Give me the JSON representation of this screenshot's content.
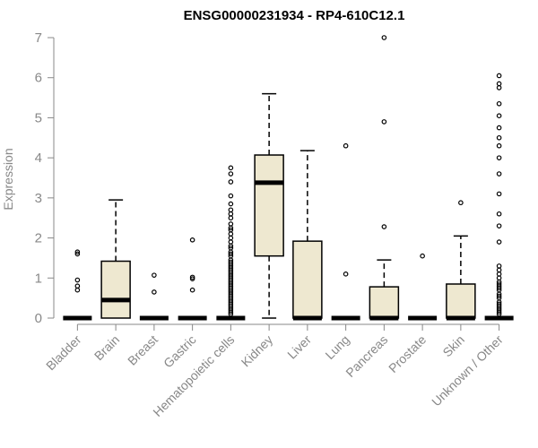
{
  "chart_data": {
    "type": "boxplot",
    "title": "ENSG00000231934 - RP4-610C12.1",
    "xlabel": "",
    "ylabel": "Expression",
    "ylim": [
      0,
      7
    ],
    "yticks": [
      "0",
      "1",
      "2",
      "3",
      "4",
      "5",
      "6",
      "7"
    ],
    "grid": false,
    "legend": "none",
    "colors": {
      "box_fill": "#EEE8D0",
      "box_stroke": "#000000",
      "axis": "#888888"
    },
    "categories": [
      "Bladder",
      "Brain",
      "Breast",
      "Gastric",
      "Hematopoietic cells",
      "Kidney",
      "Liver",
      "Lung",
      "Pancreas",
      "Prostate",
      "Skin",
      "Unknown / Other"
    ],
    "series": [
      {
        "category": "Bladder",
        "q1": 0,
        "median": 0,
        "q3": 0,
        "whisker_low": 0,
        "whisker_high": 0,
        "outliers": [
          0.7,
          0.8,
          0.95,
          1.6,
          1.65
        ]
      },
      {
        "category": "Brain",
        "q1": 0,
        "median": 0.45,
        "q3": 1.42,
        "whisker_low": 0,
        "whisker_high": 2.95,
        "outliers": []
      },
      {
        "category": "Breast",
        "q1": 0,
        "median": 0,
        "q3": 0,
        "whisker_low": 0,
        "whisker_high": 0,
        "outliers": [
          0.65,
          1.07
        ]
      },
      {
        "category": "Gastric",
        "q1": 0,
        "median": 0,
        "q3": 0,
        "whisker_low": 0,
        "whisker_high": 0,
        "outliers": [
          0.7,
          0.98,
          1.02,
          1.95
        ]
      },
      {
        "category": "Hematopoietic cells",
        "q1": 0,
        "median": 0,
        "q3": 0,
        "whisker_low": 0,
        "whisker_high": 0,
        "outliers": [
          0.1,
          0.15,
          0.2,
          0.25,
          0.3,
          0.35,
          0.4,
          0.45,
          0.5,
          0.55,
          0.6,
          0.65,
          0.7,
          0.75,
          0.8,
          0.85,
          0.9,
          0.95,
          1.0,
          1.05,
          1.1,
          1.15,
          1.2,
          1.25,
          1.3,
          1.35,
          1.4,
          1.45,
          1.55,
          1.6,
          1.65,
          1.75,
          1.8,
          1.9,
          2.0,
          2.1,
          2.2,
          2.25,
          2.35,
          2.5,
          2.6,
          2.7,
          2.85,
          3.05,
          3.4,
          3.6,
          3.75
        ]
      },
      {
        "category": "Kidney",
        "q1": 1.55,
        "median": 3.38,
        "q3": 4.07,
        "whisker_low": 0,
        "whisker_high": 5.6,
        "outliers": []
      },
      {
        "category": "Liver",
        "q1": 0,
        "median": 0,
        "q3": 1.92,
        "whisker_low": 0,
        "whisker_high": 4.18,
        "outliers": []
      },
      {
        "category": "Lung",
        "q1": 0,
        "median": 0,
        "q3": 0,
        "whisker_low": 0,
        "whisker_high": 0,
        "outliers": [
          1.1,
          4.3
        ]
      },
      {
        "category": "Pancreas",
        "q1": 0,
        "median": 0,
        "q3": 0.78,
        "whisker_low": 0,
        "whisker_high": 1.45,
        "outliers": [
          2.28,
          4.9,
          7.0
        ]
      },
      {
        "category": "Prostate",
        "q1": 0,
        "median": 0,
        "q3": 0,
        "whisker_low": 0,
        "whisker_high": 0,
        "outliers": [
          1.55
        ]
      },
      {
        "category": "Skin",
        "q1": 0,
        "median": 0,
        "q3": 0.85,
        "whisker_low": 0,
        "whisker_high": 2.05,
        "outliers": [
          2.88
        ]
      },
      {
        "category": "Unknown / Other",
        "q1": 0,
        "median": 0,
        "q3": 0,
        "whisker_low": 0,
        "whisker_high": 0,
        "outliers": [
          0.1,
          0.15,
          0.2,
          0.25,
          0.3,
          0.35,
          0.4,
          0.5,
          0.55,
          0.6,
          0.7,
          0.75,
          0.8,
          0.85,
          0.9,
          1.0,
          1.1,
          1.2,
          1.3,
          1.9,
          2.3,
          2.6,
          3.1,
          3.6,
          4.0,
          4.3,
          4.5,
          4.75,
          5.05,
          5.35,
          5.75,
          5.85,
          6.05
        ]
      }
    ]
  }
}
